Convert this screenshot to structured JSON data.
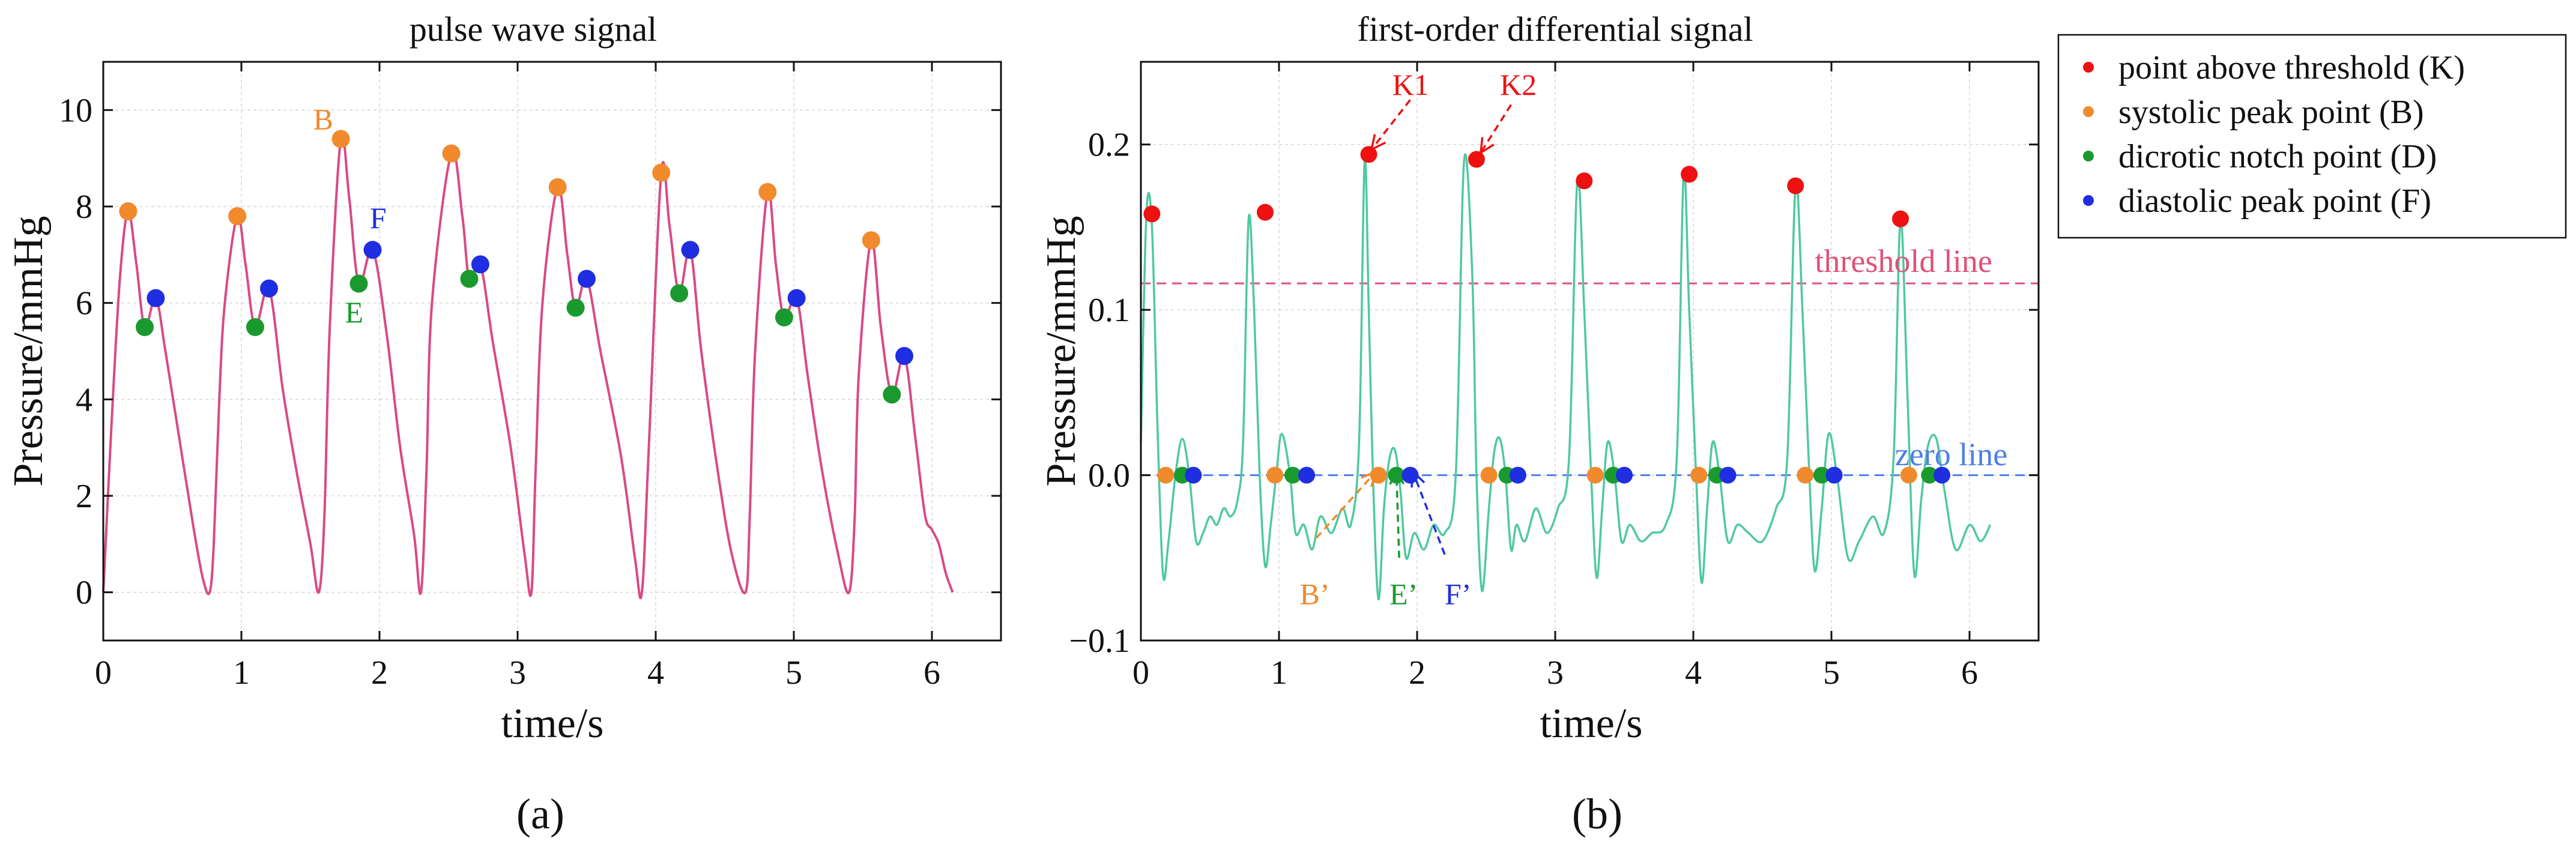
{
  "chart_data": [
    {
      "id": "a",
      "type": "line",
      "title": "pulse wave signal",
      "xlabel": "time/s",
      "ylabel": "Pressure/mmHg",
      "caption": "(a)",
      "xlim": [
        0,
        6.5
      ],
      "ylim": [
        -1,
        11
      ],
      "xticks": [
        0,
        1,
        2,
        3,
        4,
        5,
        6
      ],
      "yticks": [
        0,
        2,
        4,
        6,
        8,
        10
      ],
      "colors": {
        "line": "#d84a86",
        "B": "#f08a2c",
        "D": "#1a9a2e",
        "F": "#1f2ee0"
      },
      "series": [
        {
          "name": "pulse wave",
          "x": [
            0.0,
            0.06,
            0.12,
            0.18,
            0.24,
            0.3,
            0.38,
            0.45,
            0.55,
            0.65,
            0.72,
            0.77,
            0.8,
            0.84,
            0.88,
            0.97,
            1.03,
            1.1,
            1.2,
            1.3,
            1.4,
            1.5,
            1.56,
            1.6,
            1.64,
            1.72,
            1.78,
            1.85,
            1.95,
            2.05,
            2.15,
            2.25,
            2.3,
            2.34,
            2.38,
            2.52,
            2.6,
            2.65,
            2.73,
            2.82,
            2.95,
            3.05,
            3.1,
            3.13,
            3.18,
            3.29,
            3.36,
            3.42,
            3.5,
            3.6,
            3.75,
            3.85,
            3.9,
            3.95,
            4.04,
            4.1,
            4.17,
            4.25,
            4.33,
            4.45,
            4.55,
            4.65,
            4.68,
            4.72,
            4.81,
            4.87,
            4.93,
            5.02,
            5.1,
            5.2,
            5.32,
            5.4,
            5.44,
            5.47,
            5.56,
            5.63,
            5.71,
            5.8,
            5.88,
            5.95,
            6.0,
            6.05,
            6.1,
            6.15
          ],
          "y": [
            0.0,
            3.5,
            6.5,
            7.9,
            6.8,
            5.5,
            6.1,
            5.0,
            3.2,
            1.4,
            0.3,
            0.0,
            1.0,
            4.0,
            6.0,
            7.8,
            6.8,
            5.5,
            6.3,
            4.2,
            2.5,
            1.0,
            0.0,
            1.5,
            5.5,
            9.4,
            8.2,
            6.4,
            7.1,
            5.4,
            3.0,
            1.2,
            0.0,
            2.5,
            6.0,
            9.1,
            7.8,
            6.5,
            6.8,
            5.2,
            3.0,
            0.8,
            0.0,
            2.5,
            6.0,
            8.4,
            7.0,
            5.9,
            6.5,
            5.0,
            2.8,
            0.7,
            0.0,
            3.0,
            8.7,
            7.6,
            6.2,
            7.1,
            5.0,
            2.5,
            0.8,
            0.0,
            1.5,
            5.0,
            8.3,
            6.8,
            5.7,
            6.1,
            4.5,
            2.6,
            0.8,
            0.0,
            1.5,
            4.5,
            7.3,
            5.5,
            4.1,
            4.9,
            3.2,
            1.6,
            1.3,
            1.0,
            0.4,
            0.0
          ]
        }
      ],
      "points": {
        "B": {
          "x": [
            0.18,
            0.97,
            1.72,
            2.52,
            3.29,
            4.04,
            4.81,
            5.56
          ],
          "y": [
            7.9,
            7.8,
            9.4,
            9.1,
            8.4,
            8.7,
            8.3,
            7.3
          ]
        },
        "D": {
          "x": [
            0.3,
            1.1,
            1.85,
            2.65,
            3.42,
            4.17,
            4.93,
            5.71
          ],
          "y": [
            5.5,
            5.5,
            6.4,
            6.5,
            5.9,
            6.2,
            5.7,
            4.1
          ]
        },
        "F": {
          "x": [
            0.38,
            1.2,
            1.95,
            2.73,
            3.5,
            4.25,
            5.02,
            5.8
          ],
          "y": [
            6.1,
            6.3,
            7.1,
            6.8,
            6.5,
            7.1,
            6.1,
            4.9
          ]
        }
      },
      "annotations": [
        {
          "text": "B",
          "x": 1.52,
          "y": 9.6,
          "color": "B"
        },
        {
          "text": "F",
          "x": 1.93,
          "y": 7.55,
          "color": "F"
        },
        {
          "text": "E",
          "x": 1.75,
          "y": 5.6,
          "color": "D"
        }
      ]
    },
    {
      "id": "b",
      "type": "line",
      "title": "first-order differential signal",
      "xlabel": "time/s",
      "ylabel": "Pressure/mmHg",
      "caption": "(b)",
      "xlim": [
        0,
        6.5
      ],
      "ylim": [
        -0.1,
        0.25
      ],
      "xticks": [
        0,
        1,
        2,
        3,
        4,
        5,
        6
      ],
      "yticks": [
        -0.1,
        0.0,
        0.1,
        0.2
      ],
      "yticklabels": [
        "−0.1",
        "0.0",
        "0.1",
        "0.2"
      ],
      "colors": {
        "line": "#4fc8a2",
        "K": "#ee1111",
        "B": "#f08a2c",
        "D": "#1a9a2e",
        "F": "#1f2ee0",
        "threshold": "#e0507a",
        "zero": "#4f7fe8"
      },
      "threshold": 0.116,
      "zero": 0.0,
      "series": [
        {
          "name": "first-order differential",
          "x": [
            0.0,
            0.04,
            0.08,
            0.12,
            0.16,
            0.2,
            0.25,
            0.3,
            0.35,
            0.4,
            0.45,
            0.5,
            0.55,
            0.6,
            0.65,
            0.7,
            0.74,
            0.78,
            0.82,
            0.86,
            0.9,
            0.94,
            0.98,
            1.02,
            1.08,
            1.12,
            1.18,
            1.24,
            1.3,
            1.38,
            1.46,
            1.52,
            1.58,
            1.62,
            1.65,
            1.68,
            1.72,
            1.76,
            1.8,
            1.84,
            1.88,
            1.92,
            1.98,
            2.05,
            2.12,
            2.2,
            2.28,
            2.34,
            2.4,
            2.43,
            2.47,
            2.52,
            2.56,
            2.6,
            2.64,
            2.68,
            2.72,
            2.78,
            2.86,
            2.94,
            3.02,
            3.1,
            3.16,
            3.21,
            3.26,
            3.3,
            3.34,
            3.38,
            3.43,
            3.48,
            3.54,
            3.62,
            3.7,
            3.8,
            3.88,
            3.93,
            3.97,
            4.02,
            4.06,
            4.1,
            4.14,
            4.19,
            4.25,
            4.32,
            4.4,
            4.5,
            4.6,
            4.68,
            4.74,
            4.79,
            4.84,
            4.88,
            4.93,
            4.98,
            5.04,
            5.12,
            5.2,
            5.3,
            5.38,
            5.45,
            5.5,
            5.55,
            5.6,
            5.65,
            5.7,
            5.76,
            5.82,
            5.9,
            6.0,
            6.08,
            6.15
          ],
          "y": [
            0.02,
            0.158,
            0.15,
            0.03,
            -0.06,
            -0.04,
            0.0,
            0.022,
            0.0,
            -0.04,
            -0.035,
            -0.025,
            -0.03,
            -0.02,
            -0.025,
            -0.015,
            0.02,
            0.155,
            0.1,
            0.0,
            -0.055,
            -0.03,
            0.0,
            0.025,
            0.0,
            -0.035,
            -0.03,
            -0.045,
            -0.025,
            -0.035,
            -0.02,
            -0.03,
            0.02,
            0.19,
            0.1,
            0.0,
            -0.075,
            -0.02,
            0.01,
            0.015,
            -0.01,
            -0.05,
            -0.035,
            -0.045,
            -0.03,
            -0.035,
            0.0,
            0.19,
            0.12,
            0.0,
            -0.07,
            -0.02,
            0.015,
            0.022,
            0.0,
            -0.045,
            -0.03,
            -0.04,
            -0.02,
            -0.035,
            -0.02,
            0.01,
            0.178,
            0.1,
            0.0,
            -0.062,
            -0.02,
            0.02,
            0.0,
            -0.04,
            -0.03,
            -0.04,
            -0.035,
            -0.03,
            0.01,
            0.182,
            0.1,
            0.0,
            -0.065,
            -0.02,
            0.02,
            0.0,
            -0.04,
            -0.03,
            -0.035,
            -0.04,
            -0.02,
            0.01,
            0.175,
            0.1,
            0.0,
            -0.058,
            -0.02,
            0.025,
            0.0,
            -0.05,
            -0.04,
            -0.025,
            -0.035,
            0.01,
            0.155,
            0.05,
            -0.06,
            -0.015,
            0.018,
            0.022,
            -0.01,
            -0.045,
            -0.03,
            -0.04,
            -0.03
          ]
        }
      ],
      "points": {
        "K": {
          "x": [
            0.08,
            0.9,
            1.65,
            2.43,
            3.21,
            3.97,
            4.74,
            5.5
          ],
          "y": [
            0.158,
            0.159,
            0.194,
            0.191,
            0.178,
            0.182,
            0.175,
            0.155
          ]
        },
        "B": {
          "x": [
            0.18,
            0.97,
            1.72,
            2.52,
            3.29,
            4.04,
            4.81,
            5.56
          ],
          "y": [
            0.0,
            0.0,
            0.0,
            0.0,
            0.0,
            0.0,
            0.0,
            0.0
          ]
        },
        "D": {
          "x": [
            0.3,
            1.1,
            1.85,
            2.65,
            3.42,
            4.17,
            4.93,
            5.71
          ],
          "y": [
            0.0,
            0.0,
            0.0,
            0.0,
            0.0,
            0.0,
            0.0,
            0.0
          ]
        },
        "F": {
          "x": [
            0.38,
            1.2,
            1.95,
            2.73,
            3.5,
            4.25,
            5.02,
            5.8
          ],
          "y": [
            0.0,
            0.0,
            0.0,
            0.0,
            0.0,
            0.0,
            0.0,
            0.0
          ]
        }
      },
      "text_labels": {
        "threshold": "threshold line",
        "zero": "zero line",
        "K1": "K1",
        "K2": "K2",
        "Bp": "B’",
        "Ep": "E’",
        "Fp": "F’"
      },
      "legend": {
        "position": "outside-right",
        "entries": [
          {
            "label": "point above threshold (K)",
            "color": "K"
          },
          {
            "label": "systolic peak point (B)",
            "color": "B"
          },
          {
            "label": "dicrotic notch point (D)",
            "color": "D"
          },
          {
            "label": "diastolic peak point (F)",
            "color": "F"
          }
        ]
      }
    }
  ]
}
